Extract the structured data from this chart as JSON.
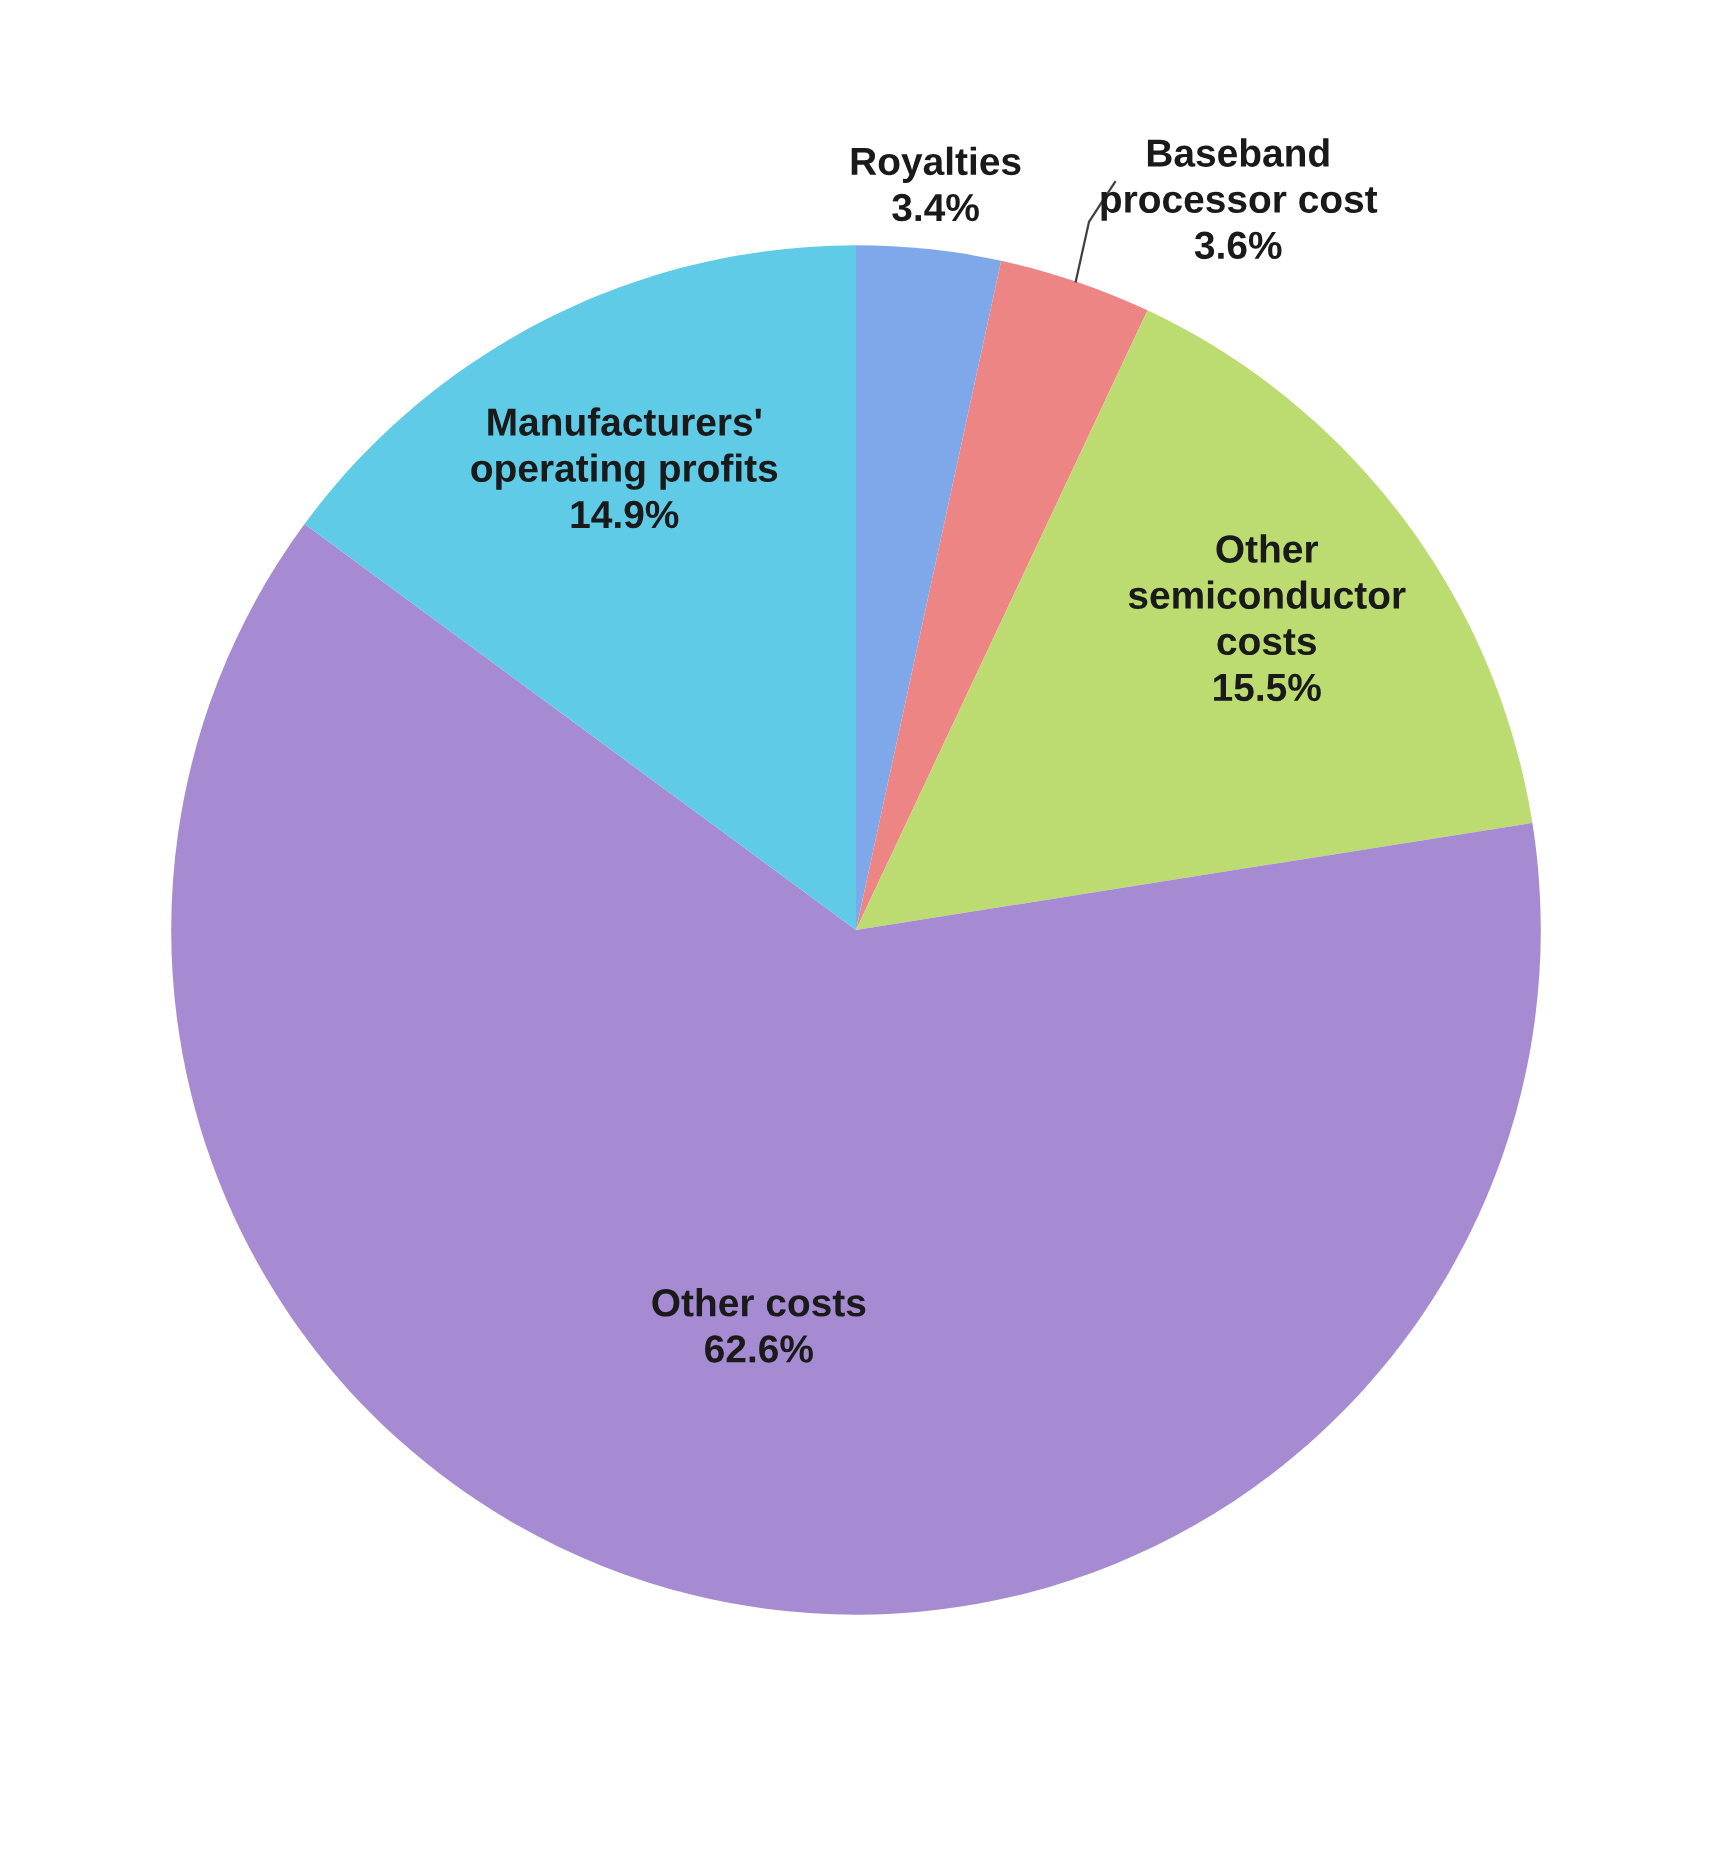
{
  "chart_data": {
    "type": "pie",
    "categories": [
      "Royalties",
      "Baseband\nprocessor cost",
      "Other\nsemiconductor\ncosts",
      "Other costs",
      "Manufacturers'\noperating profits"
    ],
    "values": [
      3.4,
      3.6,
      15.5,
      62.6,
      14.9
    ],
    "value_labels": [
      "3.4%",
      "3.6%",
      "15.5%",
      "62.6%",
      "14.9%"
    ],
    "colors": [
      "#7fa8ea",
      "#ee8585",
      "#bcdc72",
      "#a68bd2",
      "#5fcbe6"
    ],
    "legend": false
  }
}
